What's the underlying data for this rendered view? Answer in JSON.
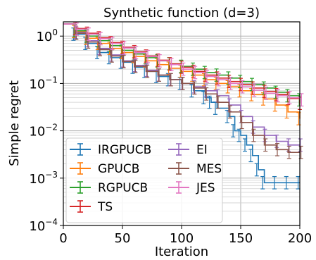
{
  "chart_data": {
    "type": "line",
    "title": "Synthetic function (d=3)",
    "xlabel": "Iteration",
    "ylabel": "Simple regret",
    "xlim": [
      0,
      200
    ],
    "ylim": [
      0.0001,
      2
    ],
    "yscale": "log",
    "grid": true,
    "error_bars": true,
    "x_ticks": [
      0,
      50,
      100,
      150,
      200
    ],
    "y_ticks": [
      {
        "value": 0.0001,
        "label": "10",
        "exp": "−4"
      },
      {
        "value": 0.001,
        "label": "10",
        "exp": "−3"
      },
      {
        "value": 0.01,
        "label": "10",
        "exp": "−2"
      },
      {
        "value": 0.1,
        "label": "10",
        "exp": "−1"
      },
      {
        "value": 1,
        "label": "10",
        "exp": "0"
      }
    ],
    "legend": {
      "position": "bottom-left",
      "columns": 2
    },
    "series": [
      {
        "name": "IRGPUCB",
        "color": "#1f77b4",
        "points": [
          [
            0,
            1.8
          ],
          [
            10,
            1.1
          ],
          [
            20,
            0.7
          ],
          [
            30,
            0.45
          ],
          [
            40,
            0.35
          ],
          [
            50,
            0.28
          ],
          [
            60,
            0.22
          ],
          [
            70,
            0.18
          ],
          [
            80,
            0.14
          ],
          [
            90,
            0.12
          ],
          [
            100,
            0.1
          ],
          [
            110,
            0.07
          ],
          [
            120,
            0.05
          ],
          [
            125,
            0.04
          ],
          [
            130,
            0.03
          ],
          [
            140,
            0.02
          ],
          [
            145,
            0.01
          ],
          [
            150,
            0.008
          ],
          [
            155,
            0.005
          ],
          [
            160,
            0.003
          ],
          [
            165,
            0.0015
          ],
          [
            170,
            0.0008
          ],
          [
            180,
            0.0008
          ],
          [
            190,
            0.0008
          ],
          [
            200,
            0.0008
          ]
        ]
      },
      {
        "name": "GPUCB",
        "color": "#ff7f0e",
        "points": [
          [
            0,
            1.8
          ],
          [
            10,
            1.25
          ],
          [
            20,
            0.9
          ],
          [
            30,
            0.7
          ],
          [
            40,
            0.55
          ],
          [
            50,
            0.45
          ],
          [
            60,
            0.37
          ],
          [
            70,
            0.3
          ],
          [
            80,
            0.25
          ],
          [
            90,
            0.21
          ],
          [
            100,
            0.18
          ],
          [
            110,
            0.15
          ],
          [
            120,
            0.12
          ],
          [
            130,
            0.1
          ],
          [
            140,
            0.085
          ],
          [
            150,
            0.07
          ],
          [
            160,
            0.058
          ],
          [
            170,
            0.047
          ],
          [
            180,
            0.035
          ],
          [
            190,
            0.025
          ],
          [
            200,
            0.018
          ]
        ]
      },
      {
        "name": "RGPUCB",
        "color": "#2ca02c",
        "points": [
          [
            0,
            1.8
          ],
          [
            10,
            1.3
          ],
          [
            20,
            1.0
          ],
          [
            30,
            0.8
          ],
          [
            40,
            0.63
          ],
          [
            50,
            0.5
          ],
          [
            60,
            0.42
          ],
          [
            70,
            0.35
          ],
          [
            80,
            0.3
          ],
          [
            90,
            0.26
          ],
          [
            100,
            0.23
          ],
          [
            110,
            0.2
          ],
          [
            120,
            0.17
          ],
          [
            130,
            0.15
          ],
          [
            140,
            0.13
          ],
          [
            150,
            0.11
          ],
          [
            160,
            0.095
          ],
          [
            170,
            0.08
          ],
          [
            180,
            0.065
          ],
          [
            190,
            0.055
          ],
          [
            200,
            0.045
          ]
        ]
      },
      {
        "name": "TS",
        "color": "#d62728",
        "points": [
          [
            0,
            1.8
          ],
          [
            10,
            1.45
          ],
          [
            20,
            1.15
          ],
          [
            30,
            0.92
          ],
          [
            40,
            0.73
          ],
          [
            50,
            0.58
          ],
          [
            60,
            0.47
          ],
          [
            70,
            0.38
          ],
          [
            80,
            0.31
          ],
          [
            90,
            0.26
          ],
          [
            100,
            0.22
          ],
          [
            110,
            0.18
          ],
          [
            120,
            0.15
          ],
          [
            130,
            0.13
          ],
          [
            140,
            0.11
          ],
          [
            150,
            0.095
          ],
          [
            160,
            0.08
          ],
          [
            170,
            0.068
          ],
          [
            180,
            0.058
          ],
          [
            190,
            0.048
          ],
          [
            200,
            0.038
          ]
        ]
      },
      {
        "name": "EI",
        "color": "#9467bd",
        "points": [
          [
            0,
            1.8
          ],
          [
            10,
            1.2
          ],
          [
            20,
            0.8
          ],
          [
            30,
            0.55
          ],
          [
            40,
            0.4
          ],
          [
            50,
            0.3
          ],
          [
            60,
            0.24
          ],
          [
            70,
            0.19
          ],
          [
            80,
            0.15
          ],
          [
            90,
            0.12
          ],
          [
            100,
            0.1
          ],
          [
            110,
            0.085
          ],
          [
            120,
            0.07
          ],
          [
            130,
            0.055
          ],
          [
            140,
            0.035
          ],
          [
            150,
            0.02
          ],
          [
            160,
            0.012
          ],
          [
            170,
            0.008
          ],
          [
            180,
            0.006
          ],
          [
            190,
            0.005
          ],
          [
            200,
            0.005
          ]
        ]
      },
      {
        "name": "MES",
        "color": "#8c564b",
        "points": [
          [
            0,
            1.8
          ],
          [
            10,
            1.15
          ],
          [
            20,
            0.75
          ],
          [
            30,
            0.52
          ],
          [
            40,
            0.38
          ],
          [
            50,
            0.29
          ],
          [
            60,
            0.23
          ],
          [
            70,
            0.18
          ],
          [
            80,
            0.15
          ],
          [
            90,
            0.12
          ],
          [
            100,
            0.1
          ],
          [
            110,
            0.08
          ],
          [
            120,
            0.06
          ],
          [
            130,
            0.04
          ],
          [
            140,
            0.025
          ],
          [
            150,
            0.015
          ],
          [
            160,
            0.008
          ],
          [
            170,
            0.005
          ],
          [
            180,
            0.004
          ],
          [
            190,
            0.0035
          ],
          [
            200,
            0.0035
          ]
        ]
      },
      {
        "name": "JES",
        "color": "#e377c2",
        "points": [
          [
            0,
            1.8
          ],
          [
            10,
            1.4
          ],
          [
            20,
            1.1
          ],
          [
            30,
            0.88
          ],
          [
            40,
            0.7
          ],
          [
            50,
            0.56
          ],
          [
            60,
            0.45
          ],
          [
            70,
            0.37
          ],
          [
            80,
            0.3
          ],
          [
            90,
            0.25
          ],
          [
            100,
            0.2
          ],
          [
            110,
            0.17
          ],
          [
            120,
            0.14
          ],
          [
            130,
            0.12
          ],
          [
            140,
            0.1
          ],
          [
            150,
            0.085
          ],
          [
            160,
            0.072
          ],
          [
            170,
            0.062
          ],
          [
            180,
            0.055
          ],
          [
            190,
            0.05
          ],
          [
            200,
            0.045
          ]
        ]
      }
    ]
  }
}
